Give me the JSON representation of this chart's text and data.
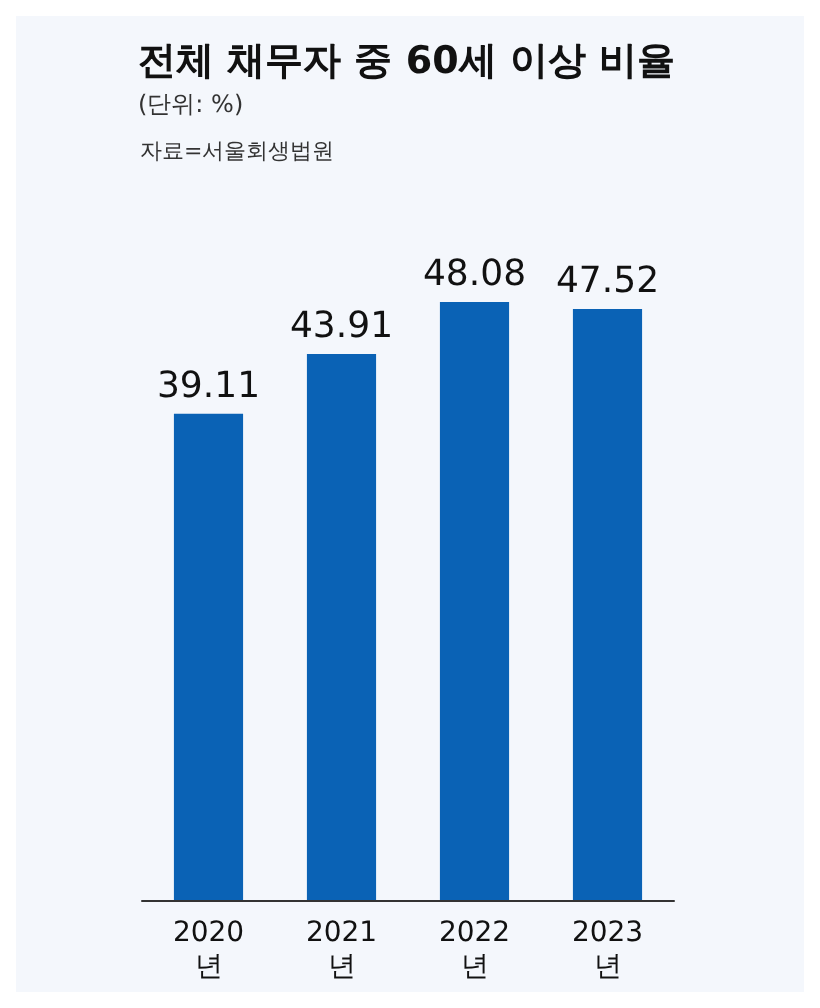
{
  "chart_data": {
    "type": "bar",
    "title": "전체 채무자 중 60세 이상 비율",
    "subtitle": "(단위: %)",
    "annotations": [
      "자료=서울회생법원"
    ],
    "categories": [
      "2020\n년",
      "2021\n년",
      "2022\n년",
      "2023\n년"
    ],
    "values": [
      39.11,
      43.91,
      48.08,
      47.52
    ],
    "color": "#0a62b5",
    "data_labels": true
  }
}
